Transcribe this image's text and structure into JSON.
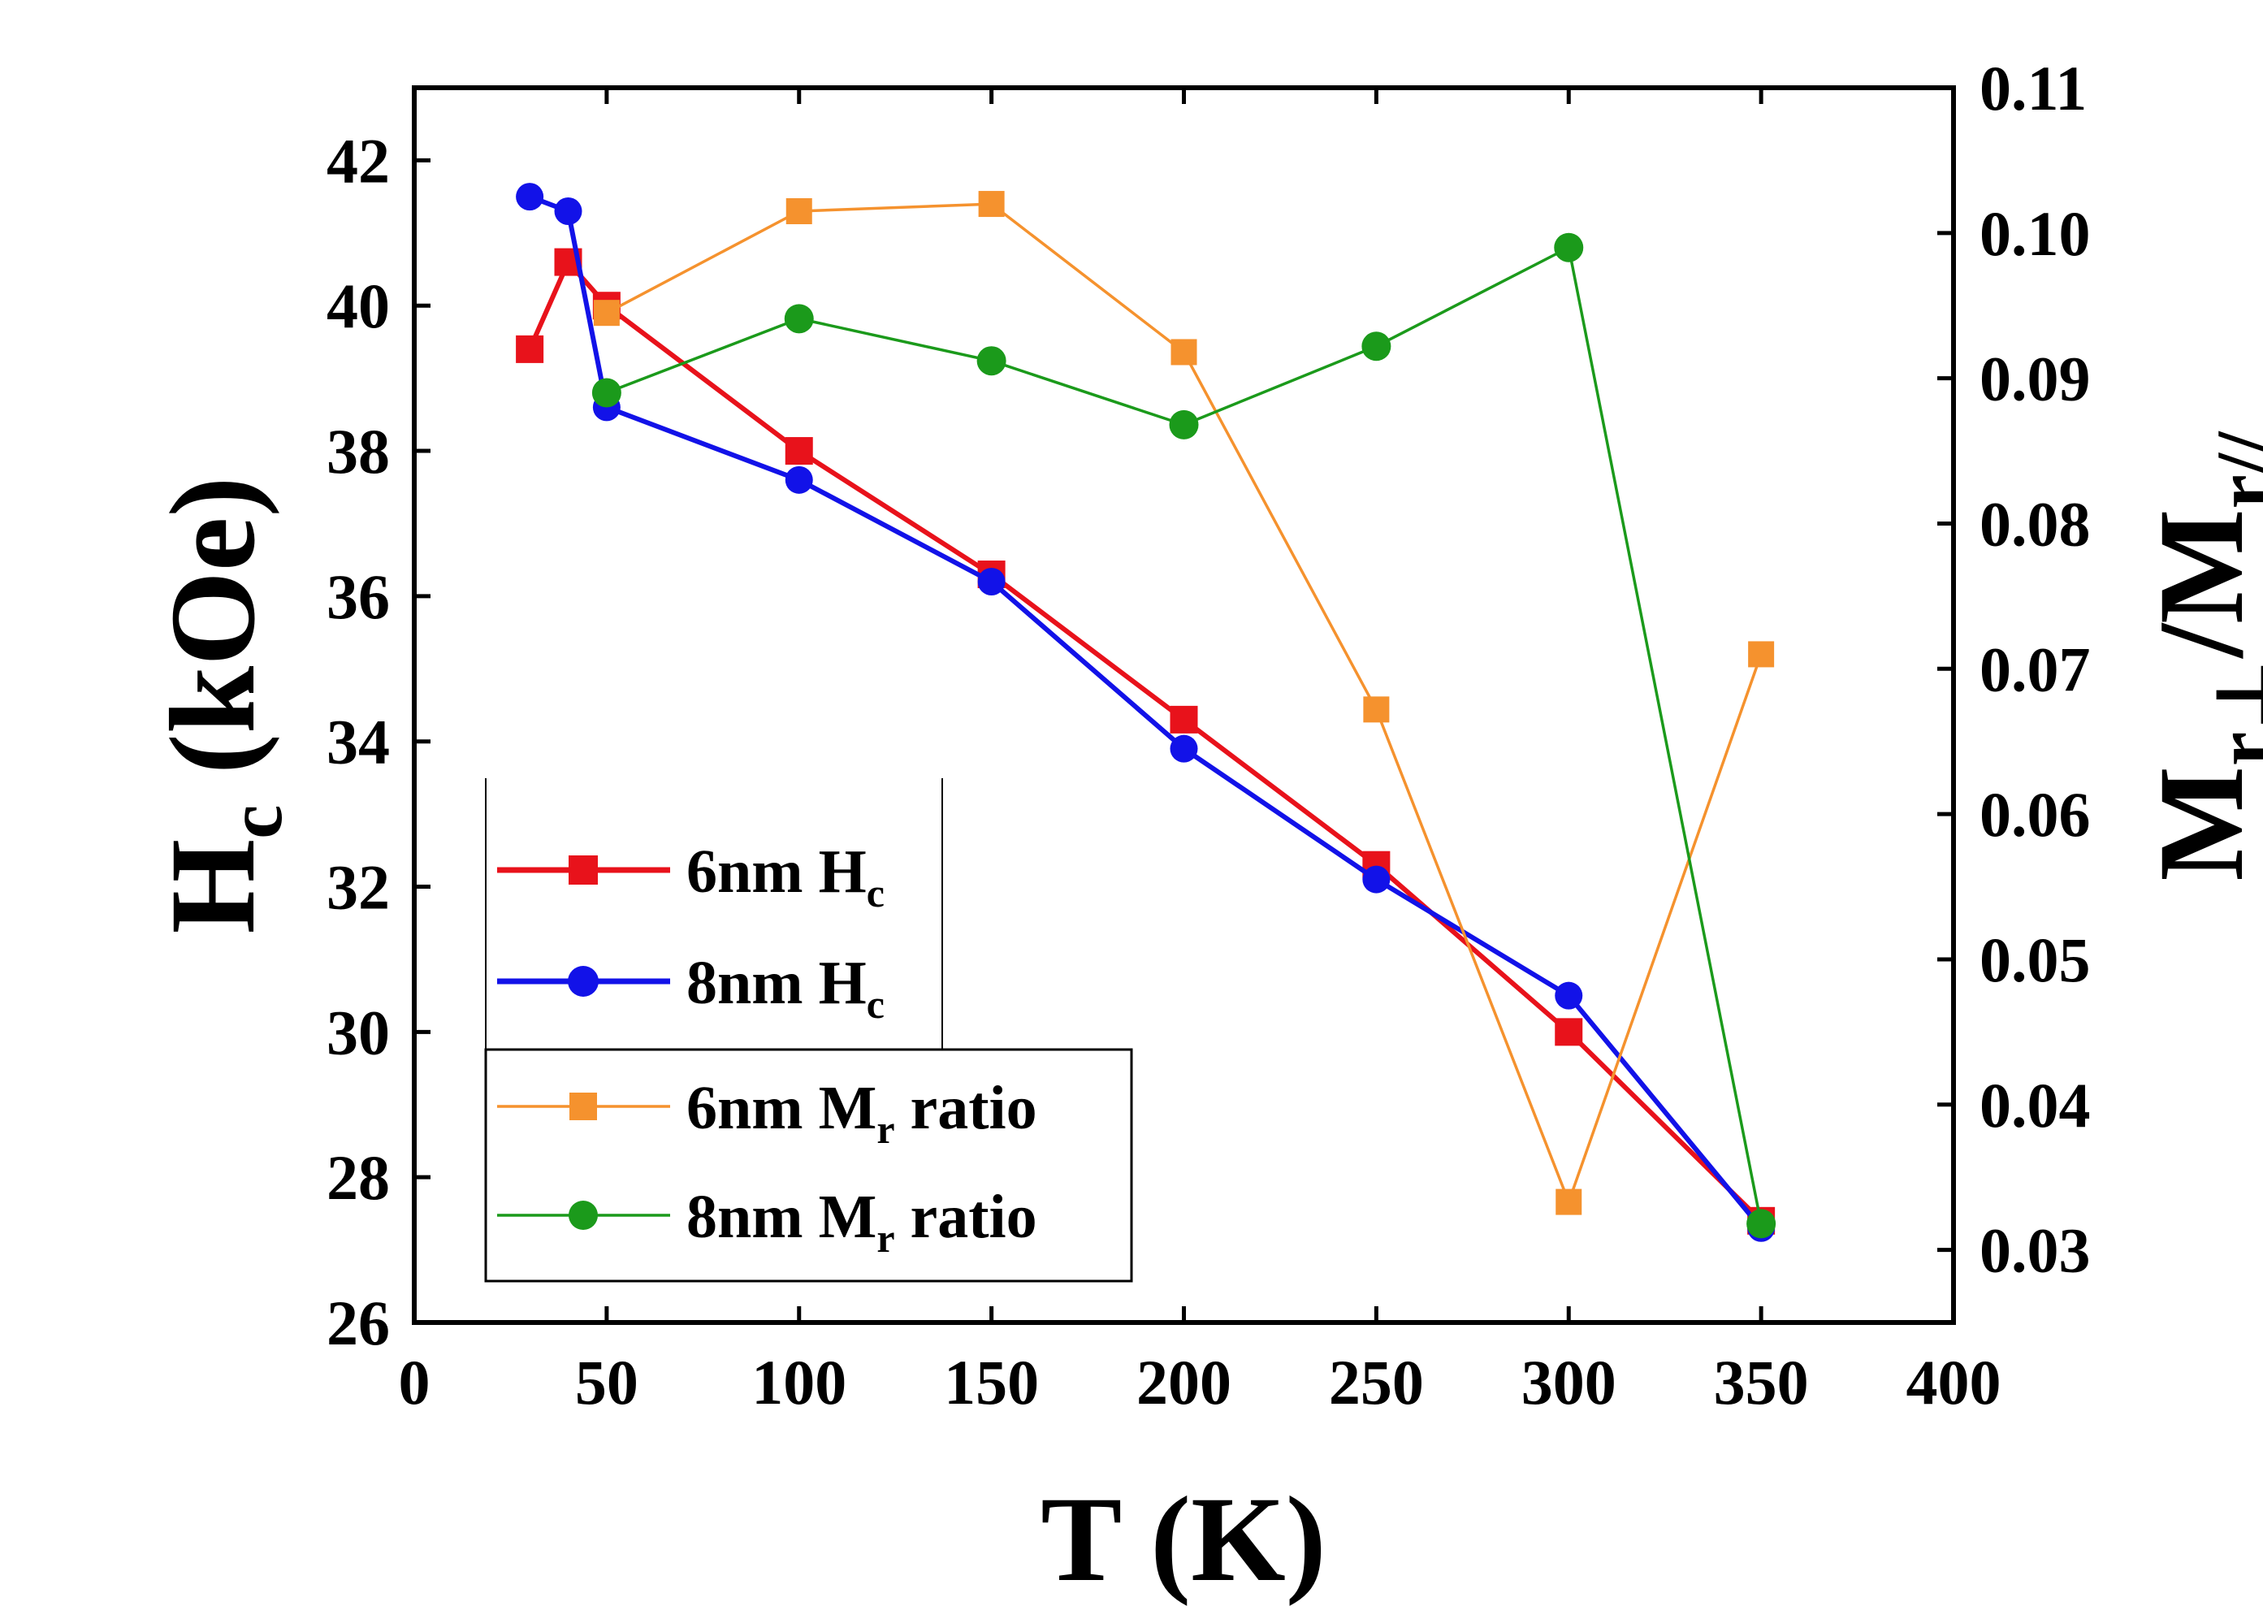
{
  "chart_data": {
    "type": "line",
    "xlabel": "T (K)",
    "ylabel_left": {
      "main": "H",
      "sub": "c",
      "rest": " (kOe)"
    },
    "ylabel_right": {
      "p1": "M",
      "s1": "r⊥",
      "p2": "/M",
      "s2": "r//"
    },
    "xlim": [
      0,
      400
    ],
    "ylim_left": [
      26,
      43
    ],
    "ylim_right": [
      0.025,
      0.11
    ],
    "x_ticks": [
      0,
      50,
      100,
      150,
      200,
      250,
      300,
      350,
      400
    ],
    "y_left_ticks": [
      26,
      28,
      30,
      32,
      34,
      36,
      38,
      40,
      42
    ],
    "y_right_ticks": [
      0.03,
      0.04,
      0.05,
      0.06,
      0.07,
      0.08,
      0.09,
      0.1,
      0.11
    ],
    "y_right_tick_labels": [
      "0.03",
      "0.04",
      "0.05",
      "0.06",
      "0.07",
      "0.08",
      "0.09",
      "0.10",
      "0.11"
    ],
    "series": [
      {
        "name": "6nm H_c",
        "label_main": "6nm H",
        "label_sub": "c",
        "axis": "left",
        "color": "#e8121b",
        "marker": "square",
        "line_width": "thick",
        "x": [
          30,
          40,
          50,
          100,
          150,
          200,
          250,
          300,
          350
        ],
        "y": [
          39.4,
          40.6,
          40.0,
          38.0,
          36.3,
          34.3,
          32.3,
          30.0,
          27.4
        ]
      },
      {
        "name": "8nm H_c",
        "label_main": "8nm H",
        "label_sub": "c",
        "axis": "left",
        "color": "#1212e8",
        "marker": "circle",
        "line_width": "thick",
        "x": [
          30,
          40,
          50,
          100,
          150,
          200,
          250,
          300,
          350
        ],
        "y": [
          41.5,
          41.3,
          38.6,
          37.6,
          36.2,
          33.9,
          32.1,
          30.5,
          27.3
        ]
      },
      {
        "name": "6nm M_r ratio",
        "label_main": "6nm M",
        "label_sub": "r",
        "label_rest": " ratio",
        "axis": "right",
        "color": "#f5922e",
        "marker": "square",
        "line_width": "thin",
        "x": [
          50,
          100,
          150,
          200,
          250,
          300,
          350
        ],
        "y": [
          0.0945,
          0.1015,
          0.102,
          0.0918,
          0.0672,
          0.0333,
          0.071
        ]
      },
      {
        "name": "8nm M_r ratio",
        "label_main": "8nm M",
        "label_sub": "r",
        "label_rest": " ratio",
        "axis": "right",
        "color": "#1b9a1b",
        "marker": "circle",
        "line_width": "thin",
        "x": [
          50,
          100,
          150,
          200,
          250,
          300,
          350
        ],
        "y": [
          0.089,
          0.0941,
          0.0912,
          0.0868,
          0.0922,
          0.099,
          0.0318
        ]
      }
    ]
  }
}
